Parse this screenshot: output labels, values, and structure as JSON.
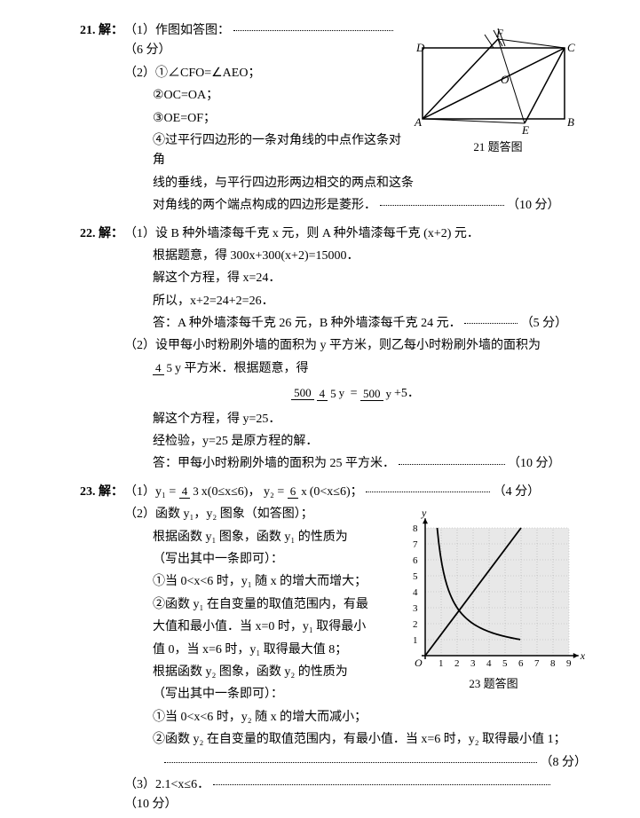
{
  "q21": {
    "num": "21.",
    "label": "解：",
    "p1": "（1）作图如答图：",
    "p1_pts": "（6 分）",
    "p2_1": "（2）①∠CFO=∠AEO；",
    "p2_2": "②OC=OA；",
    "p2_3": "③OE=OF；",
    "p2_4a": "④过平行四边形的一条对角线的中点作这条对角",
    "p2_4b": "线的垂线，与平行四边形两边相交的两点和这条",
    "p2_4c": "对角线的两个端点构成的四边形是菱形．",
    "p2_pts": "（10 分）",
    "fig_caption": "21 题答图",
    "fig": {
      "A": "A",
      "B": "B",
      "C": "C",
      "D": "D",
      "E": "E",
      "F": "F",
      "O": "O"
    }
  },
  "q22": {
    "num": "22.",
    "label": "解：",
    "p1a": "（1）设 B 种外墙漆每千克 x 元，则 A 种外墙漆每千克 (x+2) 元．",
    "p1b": "根据题意，得  300x+300(x+2)=15000．",
    "p1c": "解这个方程，得  x=24．",
    "p1d": "所以，x+2=24+2=26．",
    "p1e": "答：A 种外墙漆每千克 26 元，B 种外墙漆每千克 24 元．",
    "p1_pts": "（5 分）",
    "p2a": "（2）设甲每小时粉刷外墙的面积为 y 平方米，则乙每小时粉刷外墙的面积为",
    "p2b_suffix": "y 平方米．根据题意，得",
    "p2c": "解这个方程，得  y=25．",
    "p2d": "经检验，y=25 是原方程的解．",
    "p2e": "答：甲每小时粉刷外墙的面积为 25 平方米．",
    "p2_pts": "（10 分）",
    "frac1": {
      "n": "4",
      "d": "5"
    },
    "eq": {
      "l_n": "500",
      "l_d_n": "4",
      "l_d_d": "5",
      "l_d_suffix": "y",
      "r_n": "500",
      "r_d": "y",
      "plus": "+5．"
    }
  },
  "q23": {
    "num": "23.",
    "label": "解：",
    "p1_pre": "（1）y₁ = ",
    "p1_f1": {
      "n": "4",
      "d": "3"
    },
    "p1_mid": "x(0≤x≤6)，  y₂ = ",
    "p1_f2": {
      "n": "6",
      "d": "x"
    },
    "p1_end": "(0<x≤6)；",
    "p1_pts": "（4 分）",
    "p2_1": "（2）函数 y₁，y₂ 图象（如答图）；",
    "p2_2": "根据函数 y₁ 图象，函数 y₁ 的性质为",
    "p2_3": "（写出其中一条即可）：",
    "p2_4": "①当 0<x<6 时，y₁ 随 x 的增大而增大；",
    "p2_5": "②函数 y₁ 在自变量的取值范围内，有最",
    "p2_6": "大值和最小值．当 x=0 时，y₁ 取得最小",
    "p2_7": "值 0，当 x=6 时，y₁ 取得最大值 8；",
    "p2_8": "根据函数 y₂ 图象，函数 y₂ 的性质为",
    "p2_9": "（写出其中一条即可）：",
    "p2_10": "①当 0<x<6 时，y₂ 随 x 的增大而减小；",
    "p2_11": "②函数 y₂ 在自变量的取值范围内，有最小值．当 x=6 时，y₂ 取得最小值 1；",
    "p2_pts": "（8 分）",
    "p3": "（3）2.1<x≤6．",
    "p3_pts": "（10 分）",
    "fig_caption": "23 题答图",
    "chart": {
      "xticks": [
        1,
        2,
        3,
        4,
        5,
        6,
        7,
        8,
        9
      ],
      "yticks": [
        1,
        2,
        3,
        4,
        5,
        6,
        7,
        8
      ],
      "grid_color": "#b0b0b0",
      "axis_color": "#000",
      "bg": "#e8e8e8",
      "line_color": "#000"
    }
  }
}
